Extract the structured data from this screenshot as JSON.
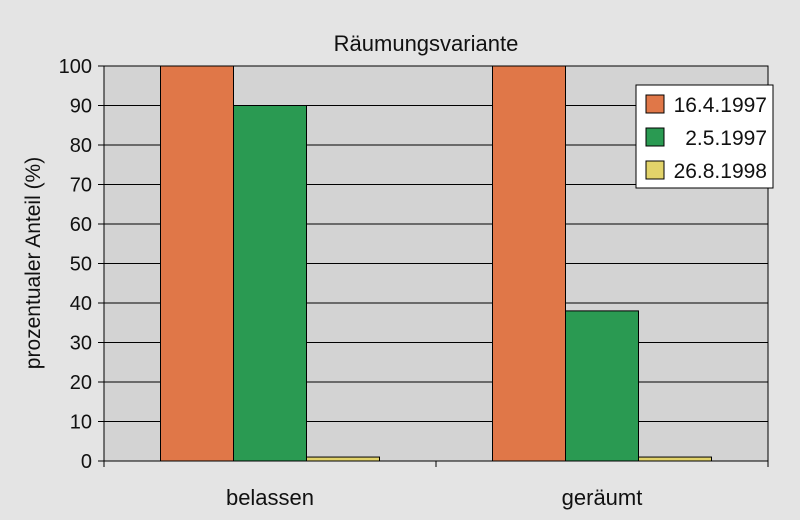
{
  "chart_data": {
    "type": "bar",
    "title": "Räumungsvariante",
    "xlabel": "",
    "ylabel": "prozentualer Anteil (%)",
    "categories": [
      "belassen",
      "geräumt"
    ],
    "series": [
      {
        "name": "16.4.1997",
        "color": "#e07748",
        "values": [
          100,
          100
        ]
      },
      {
        "name": "2.5.1997",
        "color": "#2a9a52",
        "values": [
          90,
          38
        ]
      },
      {
        "name": "26.8.1998",
        "color": "#e2d36a",
        "values": [
          1,
          1
        ]
      }
    ],
    "ylim": [
      0,
      100
    ],
    "yticks": [
      0,
      10,
      20,
      30,
      40,
      50,
      60,
      70,
      80,
      90,
      100
    ],
    "grid": true,
    "legend": "top-right",
    "plot_background": "#d3d3d3"
  }
}
